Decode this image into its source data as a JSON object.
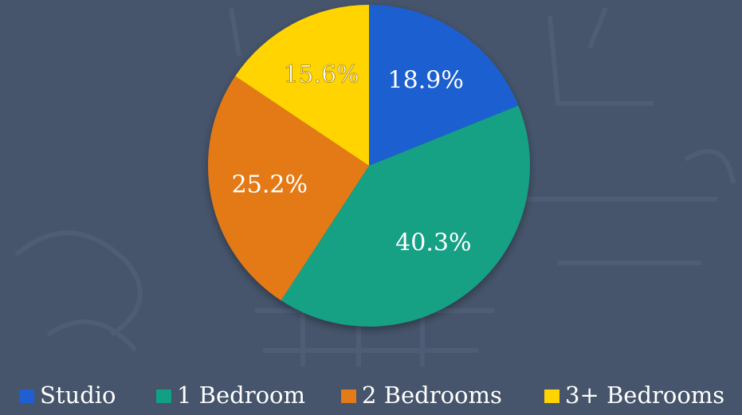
{
  "chart_data": {
    "type": "pie",
    "categories": [
      "Studio",
      "1 Bedroom",
      "2 Bedrooms",
      "3+ Bedrooms"
    ],
    "values": [
      18.9,
      40.3,
      25.2,
      15.6
    ],
    "value_labels": [
      "18.9%",
      "40.3%",
      "25.2%",
      "15.6%"
    ],
    "colors": [
      "#1f5fd0",
      "#12a084",
      "#e47a18",
      "#ffd400"
    ],
    "legend": "bottom"
  }
}
